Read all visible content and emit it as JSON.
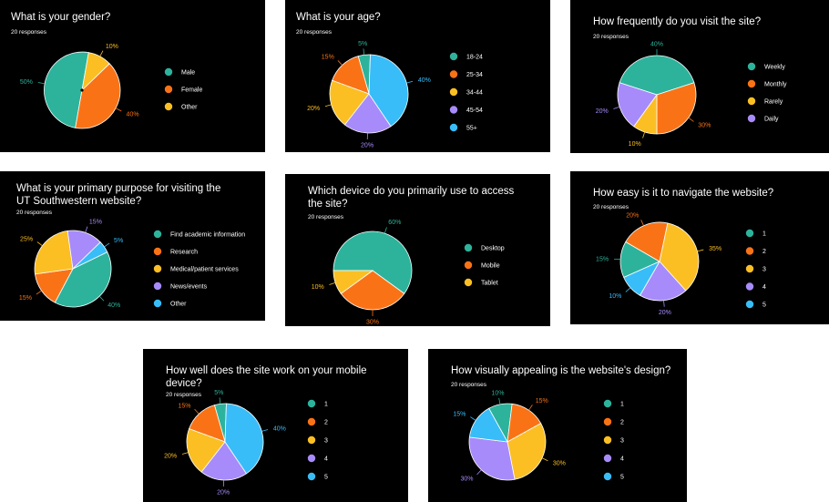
{
  "colors": {
    "teal": "#2db39c",
    "orange": "#f97316",
    "yellow": "#fbbf24",
    "purple": "#a78bfa",
    "blue": "#38bdf8"
  },
  "chart_data": [
    {
      "type": "pie",
      "title": "What is your gender?",
      "responses": "20 responses",
      "categories": [
        "Male",
        "Female",
        "Other"
      ],
      "values": [
        50,
        40,
        10
      ],
      "labels": [
        "50%",
        "40%",
        "10%"
      ],
      "colors": [
        "#2db39c",
        "#f97316",
        "#fbbf24"
      ],
      "legend_position": "right"
    },
    {
      "type": "pie",
      "title": "What is your age?",
      "responses": "20 responses",
      "categories": [
        "18-24",
        "25-34",
        "34-44",
        "45-54",
        "55+"
      ],
      "values": [
        5,
        15,
        20,
        20,
        40
      ],
      "labels": [
        "5%",
        "15%",
        "20%",
        "20%",
        "40%"
      ],
      "colors": [
        "#2db39c",
        "#f97316",
        "#fbbf24",
        "#a78bfa",
        "#38bdf8"
      ],
      "legend_position": "right"
    },
    {
      "type": "pie",
      "title": "How frequently do you visit the site?",
      "responses": "20 responses",
      "categories": [
        "Weekly",
        "Monthly",
        "Rarely",
        "Daily"
      ],
      "values": [
        40,
        30,
        10,
        20
      ],
      "labels": [
        "40%",
        "30%",
        "10%",
        "20%"
      ],
      "colors": [
        "#2db39c",
        "#f97316",
        "#fbbf24",
        "#a78bfa"
      ],
      "legend_position": "right"
    },
    {
      "type": "pie",
      "title": "What is your primary purpose for visiting the UT Southwestern website?",
      "responses": "20 responses",
      "categories": [
        "Find academic information",
        "Research",
        "Medical/patient services",
        "News/events",
        "Other"
      ],
      "values": [
        40,
        15,
        25,
        15,
        5
      ],
      "labels": [
        "40%",
        "15%",
        "25%",
        "15%",
        "5%"
      ],
      "colors": [
        "#2db39c",
        "#f97316",
        "#fbbf24",
        "#a78bfa",
        "#38bdf8"
      ],
      "legend_position": "right"
    },
    {
      "type": "pie",
      "title": "Which device do you primarily use to access the site?",
      "responses": "20 responses",
      "categories": [
        "Desktop",
        "Mobile",
        "Tablet"
      ],
      "values": [
        60,
        30,
        10
      ],
      "labels": [
        "60%",
        "30%",
        "10%"
      ],
      "colors": [
        "#2db39c",
        "#f97316",
        "#fbbf24"
      ],
      "legend_position": "right"
    },
    {
      "type": "pie",
      "title": "How easy is it to navigate the website?",
      "responses": "20 responses",
      "categories": [
        "1",
        "2",
        "3",
        "4",
        "5"
      ],
      "values": [
        15,
        20,
        35,
        20,
        10
      ],
      "labels": [
        "15%",
        "20%",
        "35%",
        "20%",
        "10%"
      ],
      "colors": [
        "#2db39c",
        "#f97316",
        "#fbbf24",
        "#a78bfa",
        "#38bdf8"
      ],
      "legend_position": "right"
    },
    {
      "type": "pie",
      "title": "How well does the site work on your mobile device?",
      "responses": "20 responses",
      "categories": [
        "1",
        "2",
        "3",
        "4",
        "5"
      ],
      "values": [
        5,
        15,
        20,
        20,
        40
      ],
      "labels": [
        "5%",
        "15%",
        "20%",
        "20%",
        "40%"
      ],
      "colors": [
        "#2db39c",
        "#f97316",
        "#fbbf24",
        "#a78bfa",
        "#38bdf8"
      ],
      "legend_position": "right"
    },
    {
      "type": "pie",
      "title": "How visually appealing is the website's design?",
      "responses": "20 responses",
      "categories": [
        "1",
        "2",
        "3",
        "4",
        "5"
      ],
      "values": [
        10,
        15,
        30,
        30,
        15
      ],
      "labels": [
        "10%",
        "15%",
        "30%",
        "30%",
        "15%"
      ],
      "colors": [
        "#2db39c",
        "#f97316",
        "#fbbf24",
        "#a78bfa",
        "#38bdf8"
      ],
      "legend_position": "right"
    }
  ]
}
